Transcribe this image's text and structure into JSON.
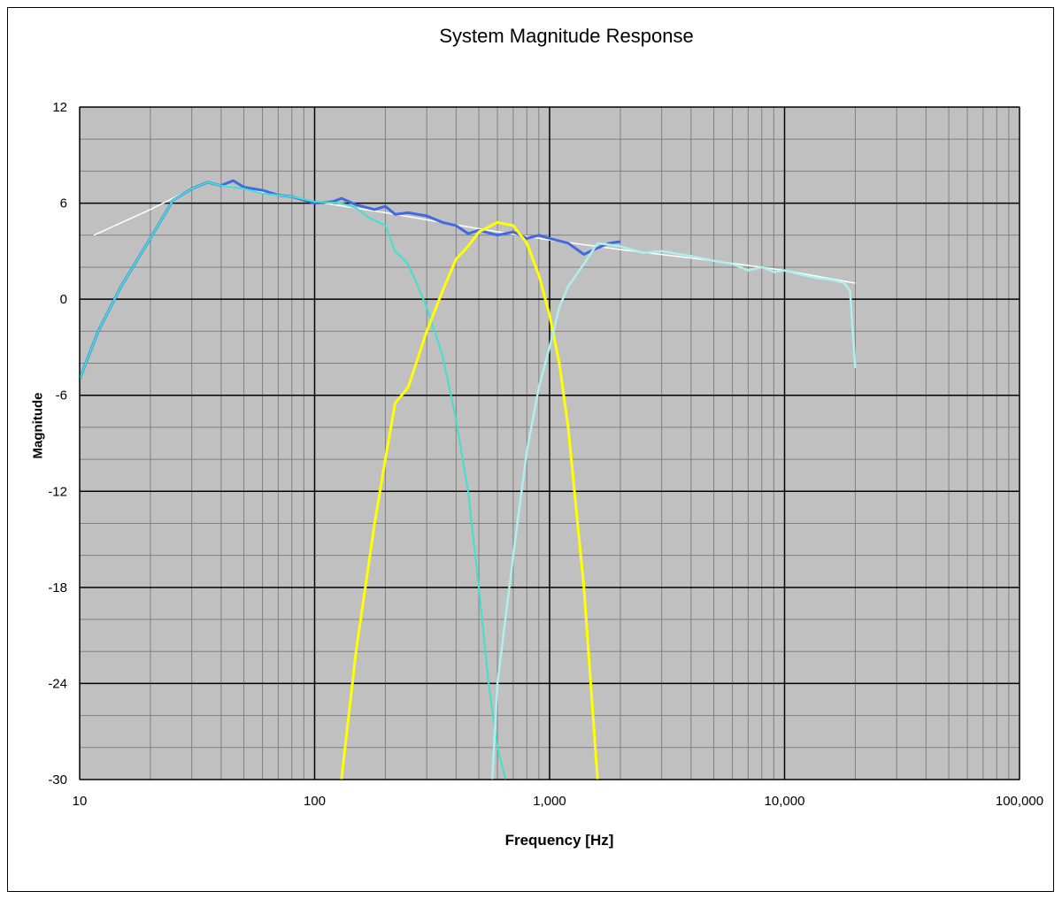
{
  "chart_data": {
    "type": "line",
    "title": "System Magnitude Response",
    "xlabel": "Frequency [Hz]",
    "ylabel": "Magnitude",
    "xscale": "log",
    "xlim": [
      10,
      100000
    ],
    "ylim": [
      -30,
      12
    ],
    "xticks": [
      10,
      100,
      1000,
      10000,
      100000
    ],
    "xtick_labels": [
      "10",
      "100",
      "1,000",
      "10,000",
      "100,000"
    ],
    "yticks": [
      12,
      6,
      0,
      -6,
      -12,
      -18,
      -24,
      -30
    ],
    "ytick_labels": [
      "12",
      "6",
      "0",
      "-6",
      "-12",
      "-18",
      "-24",
      "-30"
    ],
    "grid": true,
    "legend": "none",
    "colors": {
      "plot_bg": "#c0c0c0",
      "major_grid": "#000000",
      "minor_grid": "#808080"
    },
    "series": [
      {
        "color": "#ffffff",
        "width": 1.5,
        "x": [
          11.5,
          20,
          30,
          35,
          50,
          100,
          200,
          500,
          1000,
          2000,
          5000,
          10000,
          20000
        ],
        "y": [
          4,
          5.6,
          6.9,
          7.3,
          6.9,
          6.1,
          5.4,
          4.4,
          3.7,
          3.1,
          2.4,
          1.8,
          1.0
        ]
      },
      {
        "color": "#4169e1",
        "width": 3,
        "x": [
          10,
          12,
          15,
          20,
          25,
          30,
          35,
          40,
          45,
          50,
          60,
          70,
          80,
          100,
          120,
          130,
          150,
          180,
          200,
          220,
          250,
          300,
          350,
          400,
          450,
          500,
          600,
          700,
          800,
          900,
          1000,
          1200,
          1400,
          1600,
          1800,
          2000
        ],
        "y": [
          -5,
          -2,
          0.8,
          3.8,
          6.2,
          6.9,
          7.3,
          7.1,
          7.4,
          7.0,
          6.8,
          6.5,
          6.4,
          6.0,
          6.1,
          6.3,
          5.9,
          5.6,
          5.8,
          5.3,
          5.4,
          5.2,
          4.8,
          4.6,
          4.1,
          4.3,
          4.0,
          4.2,
          3.8,
          4.0,
          3.8,
          3.5,
          2.8,
          3.2,
          3.5,
          3.6
        ]
      },
      {
        "color": "#40e0d0",
        "width": 2,
        "x": [
          10,
          12,
          15,
          20,
          25,
          30,
          35,
          40,
          50,
          60,
          80,
          100,
          130,
          150,
          170,
          200,
          220,
          250,
          300,
          350,
          400,
          450,
          500,
          550,
          600,
          650
        ],
        "y": [
          -5,
          -2,
          0.8,
          3.8,
          6.2,
          6.9,
          7.3,
          7.1,
          6.9,
          6.6,
          6.4,
          6.1,
          6.0,
          5.7,
          5.1,
          4.6,
          3.0,
          2.2,
          -0.5,
          -3.5,
          -7.5,
          -12,
          -18,
          -24,
          -28,
          -30
        ]
      },
      {
        "color": "#ffff00",
        "width": 3,
        "x": [
          130,
          150,
          180,
          200,
          220,
          250,
          300,
          350,
          400,
          450,
          500,
          600,
          700,
          800,
          900,
          1000,
          1100,
          1200,
          1400,
          1600
        ],
        "y": [
          -30,
          -22,
          -14,
          -10,
          -6.5,
          -5.5,
          -2,
          0.5,
          2.5,
          3.3,
          4.2,
          4.8,
          4.6,
          3.5,
          1.5,
          -1.0,
          -4.0,
          -8.0,
          -18,
          -30
        ]
      },
      {
        "color": "#afeeee",
        "width": 2.5,
        "x": [
          570,
          600,
          700,
          800,
          900,
          1000,
          1100,
          1200,
          1400,
          1600,
          2000,
          2500,
          3000,
          4000,
          5000,
          6000,
          7000,
          8000,
          9000,
          10000,
          12000,
          14000,
          16000,
          18000,
          19000,
          20000
        ],
        "y": [
          -30,
          -24,
          -16,
          -9.5,
          -5.5,
          -3,
          -0.5,
          0.8,
          2.2,
          3.5,
          3.3,
          2.9,
          3.0,
          2.7,
          2.4,
          2.2,
          1.8,
          2.0,
          1.7,
          1.8,
          1.5,
          1.3,
          1.2,
          1.0,
          0.5,
          -4.3
        ]
      }
    ]
  }
}
